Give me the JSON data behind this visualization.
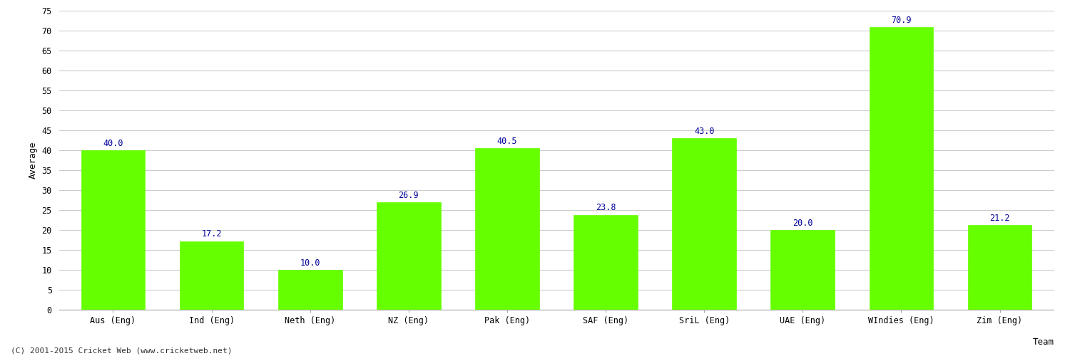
{
  "categories": [
    "Aus (Eng)",
    "Ind (Eng)",
    "Neth (Eng)",
    "NZ (Eng)",
    "Pak (Eng)",
    "SAF (Eng)",
    "SriL (Eng)",
    "UAE (Eng)",
    "WIndies (Eng)",
    "Zim (Eng)"
  ],
  "values": [
    40.0,
    17.2,
    10.0,
    26.9,
    40.5,
    23.8,
    43.0,
    20.0,
    70.9,
    21.2
  ],
  "bar_color": "#66ff00",
  "bar_edge_color": "#66ff00",
  "label_color": "#000099",
  "xlabel": "Team",
  "ylabel": "Average",
  "ylim": [
    0,
    75
  ],
  "yticks": [
    0,
    5,
    10,
    15,
    20,
    25,
    30,
    35,
    40,
    45,
    50,
    55,
    60,
    65,
    70,
    75
  ],
  "grid_color": "#cccccc",
  "background_color": "#ffffff",
  "footer_text": "(C) 2001-2015 Cricket Web (www.cricketweb.net)",
  "label_fontsize": 8.5,
  "axis_label_fontsize": 9,
  "tick_fontsize": 8.5,
  "footer_fontsize": 8,
  "bar_width": 0.65
}
